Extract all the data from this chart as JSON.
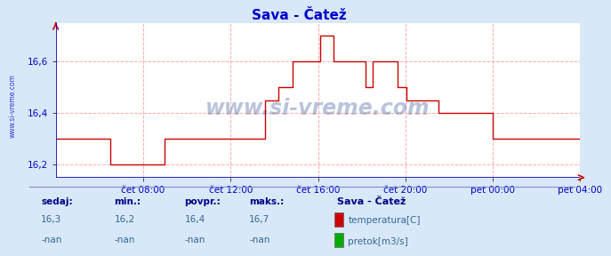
{
  "title": "Sava - Čatež",
  "background_color": "#d8e8f8",
  "plot_background": "#ffffff",
  "line_color": "#cc0000",
  "axis_color": "#0000cc",
  "grid_color": "#ffaaaa",
  "ylim": [
    16.15,
    16.75
  ],
  "yticks": [
    16.2,
    16.4,
    16.6
  ],
  "xtick_labels": [
    "čet 08:00",
    "čet 12:00",
    "čet 16:00",
    "čet 20:00",
    "pet 00:00",
    "pet 04:00"
  ],
  "watermark": "www.si-vreme.com",
  "watermark_color": "#1a3a8a",
  "side_label": "www.si-vreme.com",
  "legend_title": "Sava - Čatež",
  "legend_items": [
    "temperatura[C]",
    "pretok[m3/s]"
  ],
  "legend_colors": [
    "#cc0000",
    "#00aa00"
  ],
  "stats_labels": [
    "sedaj:",
    "min.:",
    "povpr.:",
    "maks.:"
  ],
  "stats_temp": [
    "16,3",
    "16,2",
    "16,4",
    "16,7"
  ],
  "stats_pretok": [
    "-nan",
    "-nan",
    "-nan",
    "-nan"
  ],
  "temp_profile": [
    [
      0,
      16.3
    ],
    [
      60,
      16.3
    ],
    [
      60,
      16.2
    ],
    [
      120,
      16.2
    ],
    [
      120,
      16.3
    ],
    [
      230,
      16.3
    ],
    [
      230,
      16.45
    ],
    [
      245,
      16.45
    ],
    [
      245,
      16.5
    ],
    [
      260,
      16.5
    ],
    [
      260,
      16.6
    ],
    [
      290,
      16.6
    ],
    [
      290,
      16.7
    ],
    [
      305,
      16.7
    ],
    [
      305,
      16.6
    ],
    [
      340,
      16.6
    ],
    [
      340,
      16.5
    ],
    [
      348,
      16.5
    ],
    [
      348,
      16.6
    ],
    [
      375,
      16.6
    ],
    [
      375,
      16.5
    ],
    [
      385,
      16.5
    ],
    [
      385,
      16.45
    ],
    [
      420,
      16.45
    ],
    [
      420,
      16.4
    ],
    [
      480,
      16.4
    ],
    [
      480,
      16.3
    ],
    [
      576,
      16.3
    ]
  ],
  "xmin": 0,
  "xmax": 576,
  "tick_xs": [
    96,
    192,
    288,
    384,
    480,
    576
  ]
}
